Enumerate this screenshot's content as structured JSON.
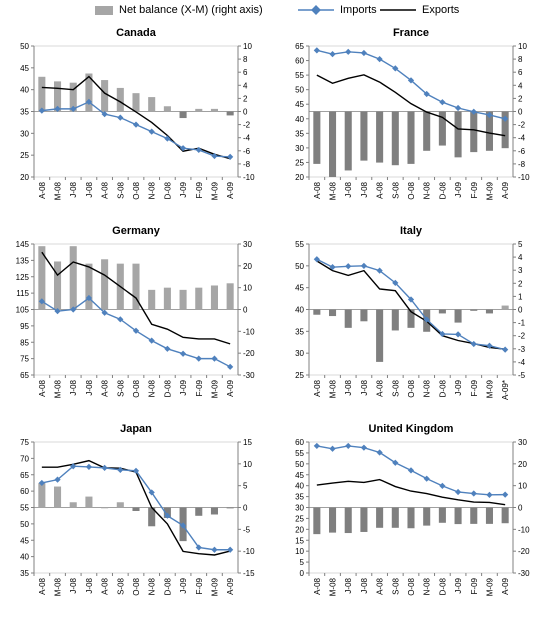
{
  "legend": {
    "balance_label": "Net balance (X-M) (right axis)",
    "imports_label": "Imports",
    "exports_label": "Exports"
  },
  "colors": {
    "balance": "#a6a6a6",
    "balance_negative": "#7f7f7f",
    "imports": "#4f81bd",
    "exports": "#000000",
    "grid": "#d9d9d9"
  },
  "chart_data": [
    {
      "type": "line",
      "title": "Canada",
      "categories": [
        "A-08",
        "M-08",
        "J-08",
        "J-08",
        "A-08",
        "S-08",
        "O-08",
        "N-08",
        "D-08",
        "J-09",
        "F-09",
        "M-09",
        "A-09"
      ],
      "series": [
        {
          "name": "Imports",
          "axis": "left",
          "values": [
            35.2,
            35.6,
            35.6,
            37.2,
            34.4,
            33.6,
            32.0,
            30.4,
            28.8,
            26.6,
            26.2,
            24.8,
            24.6
          ]
        },
        {
          "name": "Exports",
          "axis": "left",
          "values": [
            40.5,
            40.3,
            40.0,
            43.0,
            39.2,
            37.2,
            34.9,
            32.5,
            29.5,
            25.9,
            26.6,
            25.2,
            24.2
          ]
        },
        {
          "name": "Net balance (X-M)",
          "axis": "right",
          "values": [
            5.3,
            4.6,
            4.4,
            5.8,
            4.8,
            3.6,
            2.8,
            2.2,
            0.8,
            -1.0,
            0.4,
            0.4,
            -0.6
          ]
        }
      ],
      "ylim_left": [
        20,
        50
      ],
      "yticks_left": [
        20,
        25,
        30,
        35,
        40,
        45,
        50
      ],
      "ylim_right": [
        -10,
        10
      ],
      "yticks_right": [
        -10,
        -8,
        -6,
        -4,
        -2,
        0,
        2,
        4,
        6,
        8,
        10
      ]
    },
    {
      "type": "line",
      "title": "France",
      "categories": [
        "A-08",
        "M-08",
        "J-08",
        "J-08",
        "A-08",
        "S-08",
        "O-08",
        "N-08",
        "D-08",
        "J-09",
        "F-09",
        "M-09",
        "A-09"
      ],
      "series": [
        {
          "name": "Imports",
          "axis": "left",
          "values": [
            63.5,
            62.2,
            63.0,
            62.6,
            60.5,
            57.3,
            53.2,
            48.5,
            45.7,
            43.7,
            42.4,
            41.3,
            40.0
          ]
        },
        {
          "name": "Exports",
          "axis": "left",
          "values": [
            55.0,
            52.2,
            53.9,
            55.1,
            52.6,
            49.1,
            45.2,
            42.3,
            40.5,
            36.5,
            36.2,
            35.1,
            34.2
          ]
        },
        {
          "name": "Net balance (X-M)",
          "axis": "right",
          "values": [
            -8.0,
            -10.0,
            -9.0,
            -7.5,
            -7.8,
            -8.2,
            -8.0,
            -6.0,
            -5.2,
            -7.0,
            -6.2,
            -6.0,
            -5.6
          ]
        }
      ],
      "ylim_left": [
        20,
        65
      ],
      "yticks_left": [
        20,
        25,
        30,
        35,
        40,
        45,
        50,
        55,
        60,
        65
      ],
      "ylim_right": [
        -10,
        10
      ],
      "yticks_right": [
        -10,
        -8,
        -6,
        -4,
        -2,
        0,
        2,
        4,
        6,
        8,
        10
      ]
    },
    {
      "type": "line",
      "title": "Germany",
      "categories": [
        "A-08",
        "M-08",
        "J-08",
        "J-08",
        "A-08",
        "S-08",
        "O-08",
        "N-08",
        "D-08",
        "J-09",
        "F-09",
        "M-09",
        "A-09"
      ],
      "series": [
        {
          "name": "Imports",
          "axis": "left",
          "values": [
            110,
            104,
            105,
            112,
            103,
            99,
            92,
            86,
            81,
            78,
            75,
            75,
            70
          ]
        },
        {
          "name": "Exports",
          "axis": "left",
          "values": [
            140,
            126,
            134,
            131,
            126,
            119,
            112,
            96,
            93,
            88,
            87,
            87,
            84
          ]
        },
        {
          "name": "Net balance (X-M)",
          "axis": "right",
          "values": [
            29,
            22,
            29,
            21,
            23,
            21,
            21,
            9,
            10,
            9,
            10,
            11,
            12
          ]
        }
      ],
      "ylim_left": [
        65,
        145
      ],
      "yticks_left": [
        65,
        75,
        85,
        95,
        105,
        115,
        125,
        135,
        145
      ],
      "ylim_right": [
        -30,
        30
      ],
      "yticks_right": [
        -30,
        -20,
        -10,
        0,
        10,
        20,
        30
      ]
    },
    {
      "type": "line",
      "title": "Italy",
      "categories": [
        "A-08",
        "M-08",
        "J-08",
        "J-08",
        "A-08",
        "S-08",
        "O-08",
        "N-08",
        "D-08",
        "J-09",
        "F-09",
        "M-09",
        "A-09*"
      ],
      "series": [
        {
          "name": "Imports",
          "axis": "left",
          "values": [
            51.5,
            49.7,
            49.9,
            50.0,
            48.9,
            46.1,
            42.3,
            37.7,
            34.4,
            34.3,
            32.1,
            31.7,
            30.8
          ]
        },
        {
          "name": "Exports",
          "axis": "left",
          "values": [
            51.1,
            48.9,
            47.8,
            48.9,
            44.7,
            44.3,
            39.5,
            37.3,
            34.0,
            32.9,
            32.2,
            31.3,
            30.9
          ]
        },
        {
          "name": "Net balance (X-M)",
          "axis": "right",
          "values": [
            -0.4,
            -0.5,
            -1.4,
            -0.9,
            -4.0,
            -1.6,
            -1.4,
            -1.7,
            -0.3,
            -1.0,
            -0.1,
            -0.3,
            0.3
          ]
        }
      ],
      "ylim_left": [
        25,
        55
      ],
      "yticks_left": [
        25,
        30,
        35,
        40,
        45,
        50,
        55
      ],
      "ylim_right": [
        -5,
        5
      ],
      "yticks_right": [
        -5,
        -4,
        -3,
        -2,
        -1,
        0,
        1,
        2,
        3,
        4,
        5
      ]
    },
    {
      "type": "line",
      "title": "Japan",
      "categories": [
        "A-08",
        "M-08",
        "J-08",
        "J-08",
        "A-08",
        "S-08",
        "O-08",
        "N-08",
        "D-08",
        "J-09",
        "F-09",
        "M-09",
        "A-09"
      ],
      "series": [
        {
          "name": "Imports",
          "axis": "left",
          "values": [
            62.5,
            63.5,
            67.6,
            67.4,
            67.1,
            66.5,
            66.2,
            59.6,
            52.5,
            49.5,
            42.8,
            42.1,
            42.1
          ]
        },
        {
          "name": "Exports",
          "axis": "left",
          "values": [
            67.3,
            67.3,
            68.2,
            69.3,
            67.1,
            67.0,
            65.8,
            55.0,
            50.0,
            41.6,
            40.9,
            40.5,
            41.7
          ]
        },
        {
          "name": "Net balance (X-M)",
          "axis": "right",
          "values": [
            5.6,
            4.8,
            1.2,
            2.5,
            0.0,
            1.2,
            -0.8,
            -4.3,
            -2.4,
            -7.7,
            -1.9,
            -1.6,
            -0.2
          ]
        }
      ],
      "ylim_left": [
        35,
        75
      ],
      "yticks_left": [
        35,
        40,
        45,
        50,
        55,
        60,
        65,
        70,
        75
      ],
      "ylim_right": [
        -15,
        15
      ],
      "yticks_right": [
        -15,
        -10,
        -5,
        0,
        5,
        10,
        15
      ]
    },
    {
      "type": "line",
      "title": "United Kingdom",
      "categories": [
        "A-08",
        "M-08",
        "J-08",
        "J-08",
        "A-08",
        "S-08",
        "O-08",
        "N-08",
        "D-08",
        "J-09",
        "F-09",
        "M-09",
        "A-09"
      ],
      "series": [
        {
          "name": "Imports",
          "axis": "left",
          "values": [
            58.2,
            56.9,
            58.2,
            57.4,
            55.2,
            50.5,
            47.0,
            43.2,
            39.9,
            37.1,
            36.4,
            35.8,
            35.9
          ]
        },
        {
          "name": "Exports",
          "axis": "left",
          "values": [
            40.3,
            41.2,
            42.0,
            41.5,
            42.8,
            39.6,
            37.5,
            36.4,
            34.7,
            33.5,
            32.5,
            32.3,
            31.3
          ]
        },
        {
          "name": "Net balance (X-M)",
          "axis": "right",
          "values": [
            -12.2,
            -11.5,
            -11.7,
            -11.2,
            -9.3,
            -9.3,
            -9.5,
            -8.3,
            -7.0,
            -7.6,
            -7.5,
            -7.5,
            -7.2
          ]
        }
      ],
      "ylim_left": [
        0,
        60
      ],
      "yticks_left": [
        0,
        5,
        10,
        15,
        20,
        25,
        30,
        35,
        40,
        45,
        50,
        55,
        60
      ],
      "ylim_right": [
        -30,
        30
      ],
      "yticks_right": [
        -30,
        -20,
        -10,
        0,
        10,
        20,
        30
      ]
    }
  ]
}
